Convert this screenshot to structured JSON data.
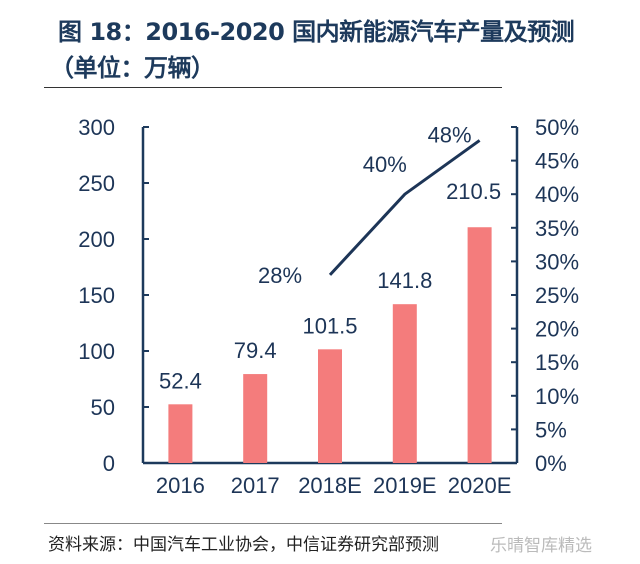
{
  "title_line1": "图 18：2016-2020 国内新能源汽车产量及预测",
  "title_line2": "（单位：万辆）",
  "source": "资料来源：中国汽车工业协会，中信证券研究部预测",
  "watermark": "乐晴智库精选",
  "chart_data": {
    "type": "bar+line",
    "categories": [
      "2016",
      "2017",
      "2018E",
      "2019E",
      "2020E"
    ],
    "series": [
      {
        "type": "bar",
        "axis": "left",
        "values": [
          52.4,
          79.4,
          101.5,
          141.8,
          210.5
        ],
        "labels": [
          "52.4",
          "79.4",
          "101.5",
          "141.8",
          "210.5"
        ],
        "color": "#f47c7c"
      },
      {
        "type": "line",
        "axis": "right",
        "values": [
          null,
          null,
          28,
          40,
          48
        ],
        "labels": [
          "",
          "",
          "28%",
          "40%",
          "48%"
        ],
        "color": "#1d3557"
      }
    ],
    "left_axis": {
      "ylim": [
        0,
        300
      ],
      "ticks": [
        "0",
        "50",
        "100",
        "150",
        "200",
        "250",
        "300"
      ]
    },
    "right_axis": {
      "ylim": [
        0,
        50
      ],
      "ticks": [
        "0%",
        "5%",
        "10%",
        "15%",
        "20%",
        "25%",
        "30%",
        "35%",
        "40%",
        "45%",
        "50%"
      ]
    },
    "grid": false,
    "legend": "none"
  }
}
